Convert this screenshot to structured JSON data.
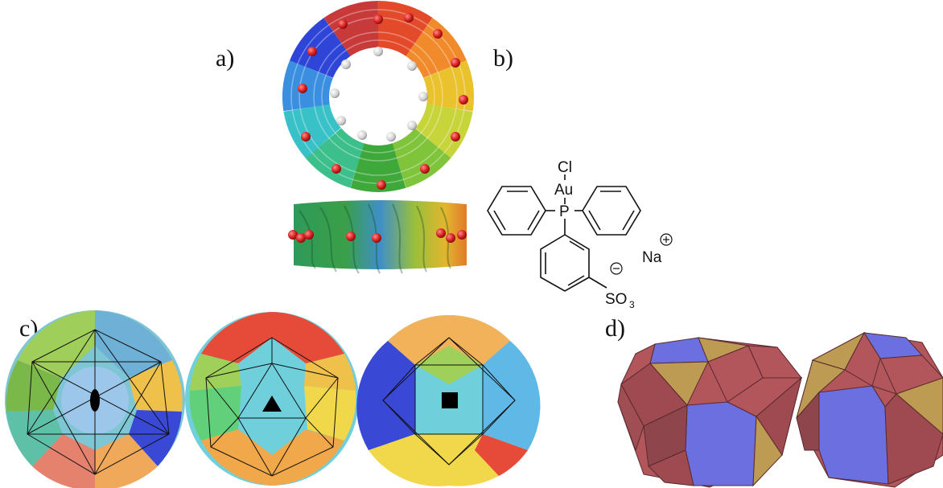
{
  "panels": {
    "a": "a)",
    "b": "b)",
    "c": "c)",
    "d": "d)"
  },
  "molecule": {
    "cl": "Cl",
    "au": "Au",
    "p": "P",
    "s": "SO",
    "sub3": "3",
    "na": "Na"
  },
  "colors": {
    "red_atom": "#d81f1f",
    "grey_atom": "#d8d8d8",
    "poly_red": "#b2565c",
    "poly_blue": "#6b6fe0",
    "poly_gold": "#bd9b52"
  },
  "symmetry_symbols": [
    "ellipse-icon",
    "triangle-icon",
    "square-icon"
  ]
}
